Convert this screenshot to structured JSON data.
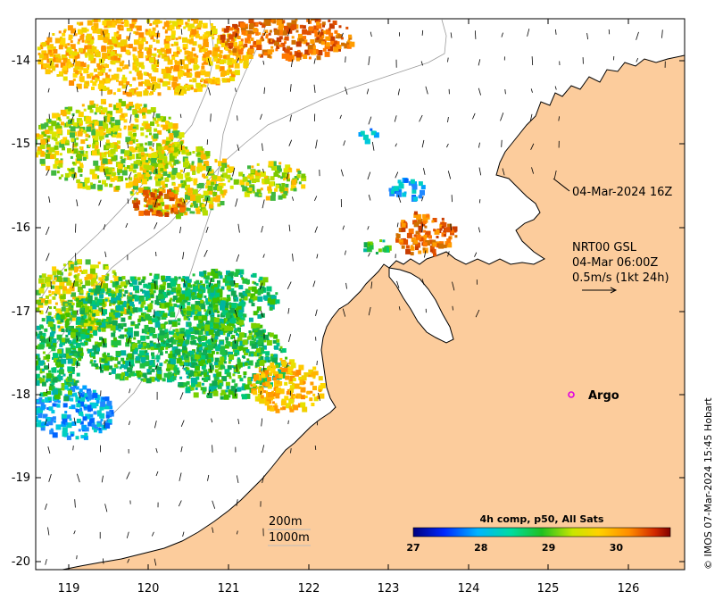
{
  "map": {
    "x_ticks": [
      "119",
      "120",
      "121",
      "122",
      "123",
      "124",
      "125",
      "126"
    ],
    "y_ticks": [
      "-14",
      "-15",
      "-16",
      "-17",
      "-18",
      "-19",
      "-20"
    ],
    "lon_range": [
      118.6,
      126.7
    ],
    "lat_range": [
      -20.1,
      -13.5
    ],
    "land_color": "#fccc9c",
    "sea_color": "#ffffff"
  },
  "annotations": {
    "timestamp": "04-Mar-2024 16Z",
    "current_line1": "NRT00 GSL",
    "current_line2": "04-Mar 06:00Z",
    "current_line3": "0.5m/s (1kt 24h)",
    "bathy_200": "200m",
    "bathy_1000": "1000m",
    "argo_label": "Argo",
    "credit": "© IMOS 07-Mar-2024 15:45 Hobart"
  },
  "colorbar": {
    "title": "4h comp, p50, All Sats",
    "ticks": [
      "27",
      "28",
      "29",
      "30"
    ],
    "tick_values": [
      27,
      28,
      29,
      30
    ],
    "range": [
      27,
      30.8
    ]
  }
}
